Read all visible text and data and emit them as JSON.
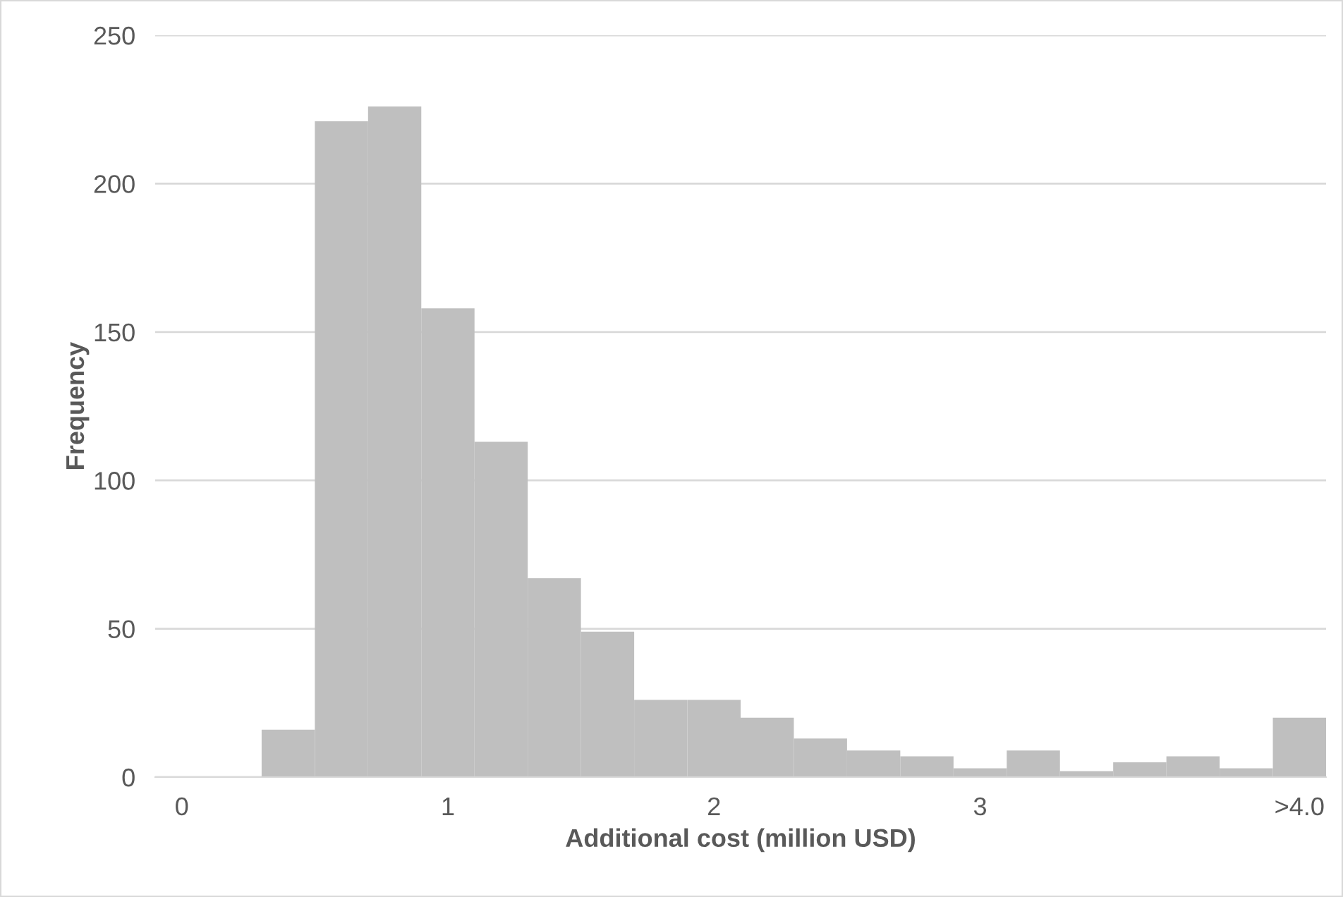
{
  "chart_data": {
    "type": "bar",
    "xlabel": "Additional cost (million USD)",
    "ylabel": "Frequency",
    "categories": [
      "0",
      null,
      null,
      null,
      null,
      "1",
      null,
      null,
      null,
      null,
      "2",
      null,
      null,
      null,
      null,
      "3",
      null,
      null,
      null,
      null,
      null,
      ">4.0"
    ],
    "values": [
      0,
      0,
      16,
      221,
      226,
      158,
      113,
      67,
      49,
      26,
      26,
      20,
      13,
      9,
      7,
      3,
      9,
      2,
      5,
      7,
      3,
      20
    ],
    "color": "#bfbfbf",
    "ylim": [
      0,
      250
    ],
    "yticks": [
      0,
      50,
      100,
      150,
      200,
      250
    ],
    "grid": "y",
    "legend": false
  }
}
